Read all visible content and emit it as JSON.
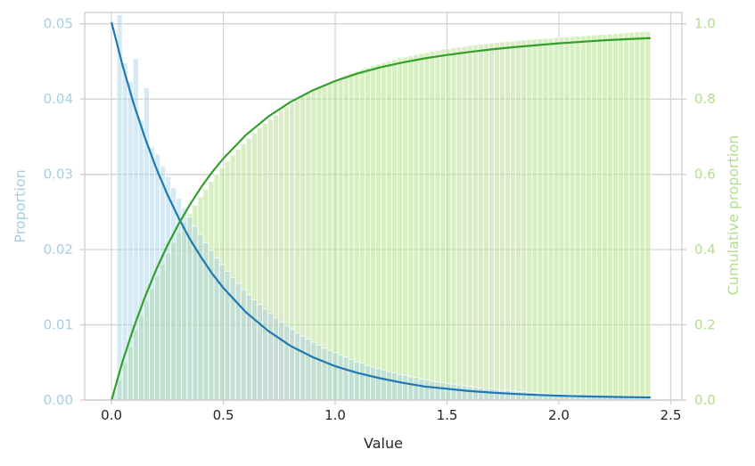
{
  "chart_data": {
    "type": "histogram-dual-axis",
    "title": "",
    "xlabel": "Value",
    "ylabel_left": "Proportion",
    "ylabel_right": "Cumulative proportion",
    "xlim": [
      -0.12,
      2.55
    ],
    "ylim_left": [
      0,
      0.0515
    ],
    "ylim_right": [
      0,
      1.03
    ],
    "x_ticks": [
      0.0,
      0.5,
      1.0,
      1.5,
      2.0,
      2.5
    ],
    "x_tick_labels": [
      "0.0",
      "0.5",
      "1.0",
      "1.5",
      "2.0",
      "2.5"
    ],
    "y_left_ticks": [
      0.0,
      0.01,
      0.02,
      0.03,
      0.04,
      0.05
    ],
    "y_left_tick_labels": [
      "0.00",
      "0.01",
      "0.02",
      "0.03",
      "0.04",
      "0.05"
    ],
    "y_right_ticks": [
      0.0,
      0.2,
      0.4,
      0.6,
      0.8,
      1.0
    ],
    "y_right_tick_labels": [
      "0.0",
      "0.2",
      "0.4",
      "0.6",
      "0.8",
      "1.0"
    ],
    "grid": true,
    "bin_start": 0.0,
    "bin_width": 0.0241,
    "histogram_proportions": [
      0.0012,
      0.0512,
      0.0448,
      0.0423,
      0.0454,
      0.0372,
      0.0415,
      0.0336,
      0.0327,
      0.0311,
      0.0297,
      0.0282,
      0.0268,
      0.0255,
      0.0243,
      0.0231,
      0.022,
      0.0209,
      0.0199,
      0.0189,
      0.018,
      0.0171,
      0.0163,
      0.0155,
      0.0147,
      0.014,
      0.0133,
      0.0127,
      0.0121,
      0.0115,
      0.0109,
      0.0104,
      0.0099,
      0.0094,
      0.0089,
      0.0085,
      0.0081,
      0.0077,
      0.0073,
      0.0069,
      0.0066,
      0.0063,
      0.006,
      0.0057,
      0.0054,
      0.0051,
      0.0049,
      0.0046,
      0.0044,
      0.0042,
      0.004,
      0.0038,
      0.0036,
      0.0034,
      0.0033,
      0.0031,
      0.003,
      0.0028,
      0.0027,
      0.0025,
      0.0024,
      0.0023,
      0.0022,
      0.0021,
      0.002,
      0.0019,
      0.0018,
      0.0017,
      0.0016,
      0.0015,
      0.0015,
      0.0014,
      0.0013,
      0.0013,
      0.0012,
      0.0011,
      0.0011,
      0.001,
      0.001,
      0.0009,
      0.0009,
      0.0008,
      0.0008,
      0.0008,
      0.0007,
      0.0007,
      0.0007,
      0.0006,
      0.0006,
      0.0006,
      0.0005,
      0.0005,
      0.0005,
      0.0005,
      0.0004,
      0.0004,
      0.0004,
      0.0004,
      0.0004,
      0.0003
    ],
    "cumulative_proportions": [
      0.001,
      0.053,
      0.1,
      0.142,
      0.186,
      0.223,
      0.263,
      0.296,
      0.329,
      0.36,
      0.39,
      0.418,
      0.445,
      0.471,
      0.495,
      0.518,
      0.54,
      0.561,
      0.581,
      0.6,
      0.618,
      0.635,
      0.652,
      0.667,
      0.682,
      0.696,
      0.71,
      0.723,
      0.735,
      0.747,
      0.758,
      0.769,
      0.779,
      0.789,
      0.798,
      0.807,
      0.815,
      0.823,
      0.831,
      0.838,
      0.845,
      0.851,
      0.857,
      0.863,
      0.869,
      0.874,
      0.879,
      0.884,
      0.889,
      0.893,
      0.897,
      0.901,
      0.905,
      0.909,
      0.912,
      0.915,
      0.918,
      0.921,
      0.924,
      0.927,
      0.929,
      0.932,
      0.934,
      0.936,
      0.938,
      0.94,
      0.942,
      0.944,
      0.946,
      0.947,
      0.949,
      0.95,
      0.952,
      0.953,
      0.954,
      0.956,
      0.957,
      0.958,
      0.959,
      0.96,
      0.961,
      0.962,
      0.963,
      0.964,
      0.965,
      0.966,
      0.967,
      0.968,
      0.969,
      0.97,
      0.971,
      0.972,
      0.973,
      0.974,
      0.975,
      0.976,
      0.977,
      0.978,
      0.979,
      0.98
    ],
    "density_curve": {
      "x": [
        0.0,
        0.05,
        0.1,
        0.15,
        0.2,
        0.25,
        0.3,
        0.35,
        0.4,
        0.45,
        0.5,
        0.6,
        0.7,
        0.8,
        0.9,
        1.0,
        1.1,
        1.2,
        1.3,
        1.4,
        1.5,
        1.6,
        1.7,
        1.8,
        1.9,
        2.0,
        2.1,
        2.2,
        2.3,
        2.41
      ],
      "y": [
        0.0502,
        0.0444,
        0.0393,
        0.0348,
        0.0308,
        0.0273,
        0.0242,
        0.0214,
        0.019,
        0.0168,
        0.0149,
        0.0117,
        0.0092,
        0.0072,
        0.0057,
        0.0045,
        0.0036,
        0.0029,
        0.0023,
        0.0018,
        0.0015,
        0.0012,
        0.00099,
        0.00082,
        0.00069,
        0.00058,
        0.0005,
        0.00044,
        0.00039,
        0.00035
      ]
    },
    "cdf_curve": {
      "x": [
        0.0,
        0.05,
        0.1,
        0.15,
        0.2,
        0.25,
        0.3,
        0.35,
        0.4,
        0.45,
        0.5,
        0.6,
        0.7,
        0.8,
        0.9,
        1.0,
        1.1,
        1.2,
        1.3,
        1.4,
        1.5,
        1.6,
        1.7,
        1.8,
        1.9,
        2.0,
        2.1,
        2.2,
        2.3,
        2.41
      ],
      "y": [
        0.0,
        0.104,
        0.194,
        0.275,
        0.347,
        0.411,
        0.468,
        0.519,
        0.565,
        0.606,
        0.642,
        0.704,
        0.753,
        0.792,
        0.823,
        0.848,
        0.868,
        0.884,
        0.897,
        0.908,
        0.917,
        0.925,
        0.932,
        0.938,
        0.943,
        0.948,
        0.952,
        0.956,
        0.959,
        0.962
      ]
    },
    "colors": {
      "hist_bars": "#a6cee3",
      "cum_bars": "#b2df8a",
      "density_line": "#1f78b4",
      "cdf_line": "#33a02c",
      "left_axis_text": "#a6cee3",
      "right_axis_text": "#b2df8a",
      "grid": "#d3d3d3",
      "spine": "#cccccc",
      "x_text": "#262626"
    }
  }
}
